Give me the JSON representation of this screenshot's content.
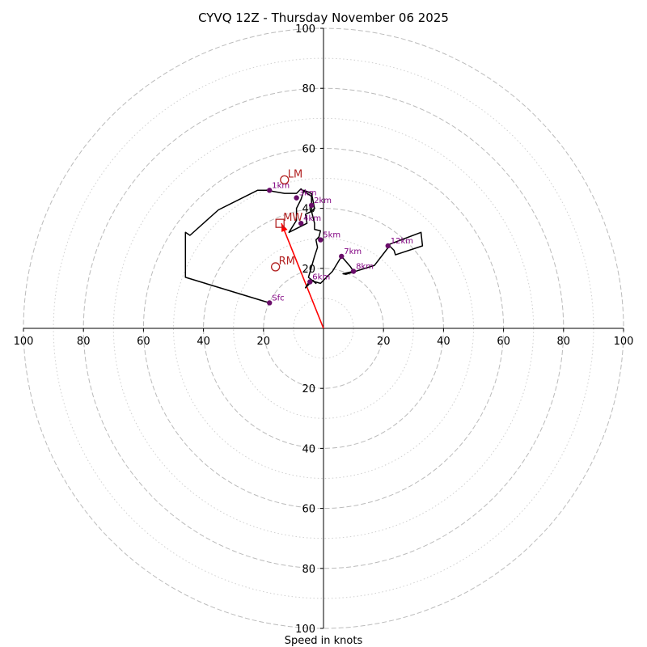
{
  "chart_data": {
    "type": "hodograph",
    "title": "CYVQ 12Z - Thursday November 06 2025",
    "xlabel": "Speed in knots",
    "range": 100,
    "rings_major": [
      20,
      40,
      60,
      80,
      100
    ],
    "rings_minor": [
      10,
      30,
      50,
      70,
      90
    ],
    "ticks": {
      "x_left": [
        "100",
        "80",
        "60",
        "40",
        "20"
      ],
      "x_right": [
        "20",
        "40",
        "60",
        "80",
        "100"
      ],
      "y_up": [
        "20",
        "40",
        "60",
        "80",
        "100"
      ],
      "y_down": [
        "20",
        "40",
        "60",
        "80",
        "100"
      ]
    },
    "trace": [
      [
        -18,
        8.5
      ],
      [
        -46,
        17
      ],
      [
        -46,
        32
      ],
      [
        -44.5,
        31
      ],
      [
        -35,
        39.5
      ],
      [
        -22,
        46
      ],
      [
        -19,
        46
      ],
      [
        -13,
        45
      ],
      [
        -9,
        45
      ],
      [
        -7.5,
        46.5
      ],
      [
        -7,
        46
      ],
      [
        -4,
        44
      ],
      [
        -4,
        39
      ],
      [
        -6,
        38
      ],
      [
        -5.5,
        35
      ],
      [
        -11.5,
        32
      ],
      [
        -9,
        36
      ],
      [
        -9,
        40
      ],
      [
        -8.5,
        41
      ],
      [
        -7.5,
        43
      ],
      [
        -6.5,
        46
      ],
      [
        -4,
        45
      ],
      [
        -3,
        40
      ],
      [
        -4,
        39
      ],
      [
        -3,
        35
      ],
      [
        -3,
        33
      ],
      [
        -1,
        32.5
      ],
      [
        -1.5,
        30.5
      ],
      [
        -2.5,
        29.5
      ],
      [
        -2,
        27
      ],
      [
        -3,
        24
      ],
      [
        -5,
        17
      ],
      [
        -2.5,
        15
      ],
      [
        -3.5,
        16
      ],
      [
        -6,
        13.5
      ],
      [
        -4.5,
        16
      ],
      [
        -1,
        15
      ],
      [
        0,
        16
      ],
      [
        3,
        19
      ],
      [
        6,
        24
      ],
      [
        9,
        20.5
      ],
      [
        10,
        19
      ],
      [
        6.5,
        18.2
      ],
      [
        7.5,
        18
      ],
      [
        17,
        21
      ],
      [
        22,
        27.5
      ],
      [
        23.5,
        26
      ],
      [
        24,
        24.5
      ],
      [
        33,
        27.5
      ],
      [
        32.5,
        32
      ],
      [
        22,
        28
      ],
      [
        21.5,
        27.5
      ]
    ],
    "height_labels": [
      {
        "label": "Sfc",
        "u": -18,
        "v": 8.5
      },
      {
        "label": "1km",
        "u": -18,
        "v": 46
      },
      {
        "label": "2km",
        "u": -4,
        "v": 41
      },
      {
        "label": "3km",
        "u": -9,
        "v": 43.5
      },
      {
        "label": "4km",
        "u": -7.5,
        "v": 35
      },
      {
        "label": "5km",
        "u": -1,
        "v": 29.5
      },
      {
        "label": "6km",
        "u": -4.5,
        "v": 15.5
      },
      {
        "label": "7km",
        "u": 6,
        "v": 24
      },
      {
        "label": "8km",
        "u": 10,
        "v": 19
      },
      {
        "label": "12km",
        "u": 21.5,
        "v": 27.5
      }
    ],
    "storm_motion": [
      {
        "label": "LM",
        "u": -13,
        "v": 49.5,
        "marker": "circle"
      },
      {
        "label": "MW",
        "u": -14.5,
        "v": 35,
        "marker": "square"
      },
      {
        "label": "RM",
        "u": -16,
        "v": 20.5,
        "marker": "circle"
      }
    ],
    "shear_vector": {
      "from": [
        0,
        0
      ],
      "to": [
        -14,
        35
      ]
    },
    "colors": {
      "trace": "#000000",
      "height_point": "#6a0d6a",
      "height_label": "#800080",
      "storm_marker": "#b22222",
      "shear_vector": "#ff0000",
      "ring": "#bbbbbb",
      "axis": "#000000"
    }
  }
}
